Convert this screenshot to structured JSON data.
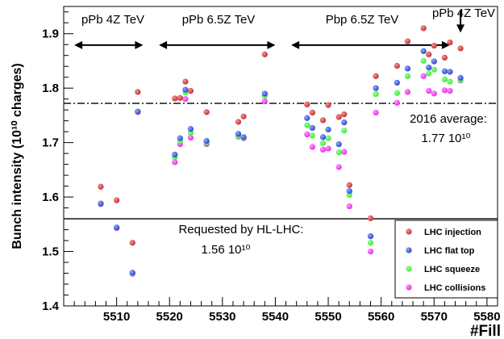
{
  "chart_data": {
    "type": "scatter",
    "xlabel": "#Fill",
    "ylabel": "Bunch intensity (10¹⁰ charges)",
    "xlim": [
      5500,
      5582
    ],
    "ylim": [
      1.4,
      1.95
    ],
    "x_ticks": [
      5510,
      5520,
      5530,
      5540,
      5550,
      5560,
      5570,
      5580
    ],
    "y_ticks": [
      1.4,
      1.5,
      1.6,
      1.7,
      1.8,
      1.9
    ],
    "grid": false,
    "legend_position": "bottom-right",
    "reference_lines": [
      {
        "name": "2016 average",
        "value": 1.772,
        "style": "dash-dot",
        "label_lines": [
          "2016 average:",
          "1.77 10¹⁰"
        ]
      },
      {
        "name": "Requested by HL-LHC",
        "value": 1.56,
        "style": "solid",
        "label_lines": [
          "Requested by HL-LHC:",
          "1.56 10¹⁰"
        ]
      }
    ],
    "period_annotations": [
      {
        "label": "pPb 4Z TeV",
        "x_start": 5502,
        "x_end": 5515,
        "y": 1.879,
        "arrow": "both"
      },
      {
        "label": "pPb 6.5Z TeV",
        "x_start": 5518,
        "x_end": 5540,
        "y": 1.879,
        "arrow": "both"
      },
      {
        "label": "Pbp 6.5Z TeV",
        "x_start": 5543,
        "x_end": 5573,
        "y": 1.879,
        "arrow": "both"
      },
      {
        "label": "pPb 4Z TeV",
        "x_start": 5575,
        "x_end": 5575,
        "y": 1.944,
        "y_end": 1.902,
        "arrow": "down"
      }
    ],
    "series": [
      {
        "name": "LHC injection",
        "color": "#cc2222",
        "points": [
          [
            5507,
            1.619
          ],
          [
            5510,
            1.594
          ],
          [
            5513,
            1.516
          ],
          [
            5514,
            1.793
          ],
          [
            5521,
            1.781
          ],
          [
            5522,
            1.782
          ],
          [
            5523,
            1.812
          ],
          [
            5524,
            1.795
          ],
          [
            5527,
            1.756
          ],
          [
            5533,
            1.738
          ],
          [
            5534,
            1.748
          ],
          [
            5538,
            1.862
          ],
          [
            5546,
            1.77
          ],
          [
            5547,
            1.755
          ],
          [
            5549,
            1.741
          ],
          [
            5550,
            1.769
          ],
          [
            5552,
            1.747
          ],
          [
            5553,
            1.752
          ],
          [
            5554,
            1.622
          ],
          [
            5558,
            1.561
          ],
          [
            5559,
            1.822
          ],
          [
            5563,
            1.841
          ],
          [
            5565,
            1.886
          ],
          [
            5568,
            1.91
          ],
          [
            5569,
            1.862
          ],
          [
            5570,
            1.878
          ],
          [
            5572,
            1.856
          ],
          [
            5573,
            1.884
          ],
          [
            5575,
            1.873
          ]
        ]
      },
      {
        "name": "LHC flat top",
        "color": "#1f3fd6",
        "points": [
          [
            5507,
            1.588
          ],
          [
            5510,
            1.544
          ],
          [
            5513,
            1.461
          ],
          [
            5514,
            1.757
          ],
          [
            5521,
            1.678
          ],
          [
            5522,
            1.708
          ],
          [
            5523,
            1.797
          ],
          [
            5524,
            1.725
          ],
          [
            5527,
            1.703
          ],
          [
            5533,
            1.716
          ],
          [
            5534,
            1.71
          ],
          [
            5538,
            1.79
          ],
          [
            5546,
            1.745
          ],
          [
            5547,
            1.727
          ],
          [
            5549,
            1.71
          ],
          [
            5550,
            1.724
          ],
          [
            5552,
            1.697
          ],
          [
            5553,
            1.737
          ],
          [
            5554,
            1.611
          ],
          [
            5558,
            1.528
          ],
          [
            5559,
            1.8
          ],
          [
            5563,
            1.81
          ],
          [
            5565,
            1.836
          ],
          [
            5568,
            1.868
          ],
          [
            5569,
            1.838
          ],
          [
            5570,
            1.849
          ],
          [
            5572,
            1.831
          ],
          [
            5573,
            1.83
          ],
          [
            5575,
            1.819
          ]
        ]
      },
      {
        "name": "LHC squeeze",
        "color": "#33ee33",
        "points": [
          [
            5507,
            1.588
          ],
          [
            5510,
            1.544
          ],
          [
            5513,
            1.46
          ],
          [
            5514,
            1.757
          ],
          [
            5521,
            1.673
          ],
          [
            5522,
            1.702
          ],
          [
            5523,
            1.792
          ],
          [
            5524,
            1.718
          ],
          [
            5527,
            1.7
          ],
          [
            5533,
            1.712
          ],
          [
            5534,
            1.709
          ],
          [
            5538,
            1.786
          ],
          [
            5546,
            1.732
          ],
          [
            5547,
            1.713
          ],
          [
            5549,
            1.699
          ],
          [
            5550,
            1.708
          ],
          [
            5552,
            1.682
          ],
          [
            5553,
            1.722
          ],
          [
            5554,
            1.604
          ],
          [
            5558,
            1.516
          ],
          [
            5559,
            1.789
          ],
          [
            5563,
            1.791
          ],
          [
            5565,
            1.822
          ],
          [
            5568,
            1.85
          ],
          [
            5569,
            1.827
          ],
          [
            5570,
            1.834
          ],
          [
            5572,
            1.816
          ],
          [
            5573,
            1.812
          ],
          [
            5575,
            1.815
          ]
        ]
      },
      {
        "name": "LHC collisions",
        "color": "#ee22ee",
        "points": [
          [
            5507,
            1.587
          ],
          [
            5510,
            1.543
          ],
          [
            5513,
            1.459
          ],
          [
            5514,
            1.756
          ],
          [
            5521,
            1.664
          ],
          [
            5522,
            1.697
          ],
          [
            5523,
            1.78
          ],
          [
            5524,
            1.709
          ],
          [
            5527,
            1.697
          ],
          [
            5533,
            1.711
          ],
          [
            5534,
            1.708
          ],
          [
            5538,
            1.776
          ],
          [
            5546,
            1.715
          ],
          [
            5547,
            1.692
          ],
          [
            5549,
            1.687
          ],
          [
            5550,
            1.689
          ],
          [
            5552,
            1.655
          ],
          [
            5553,
            1.683
          ],
          [
            5554,
            1.583
          ],
          [
            5558,
            1.5
          ],
          [
            5559,
            1.755
          ],
          [
            5563,
            1.773
          ],
          [
            5565,
            1.793
          ],
          [
            5568,
            1.822
          ],
          [
            5569,
            1.795
          ],
          [
            5570,
            1.79
          ],
          [
            5572,
            1.796
          ],
          [
            5573,
            1.795
          ],
          [
            5575,
            1.814
          ]
        ]
      }
    ]
  }
}
